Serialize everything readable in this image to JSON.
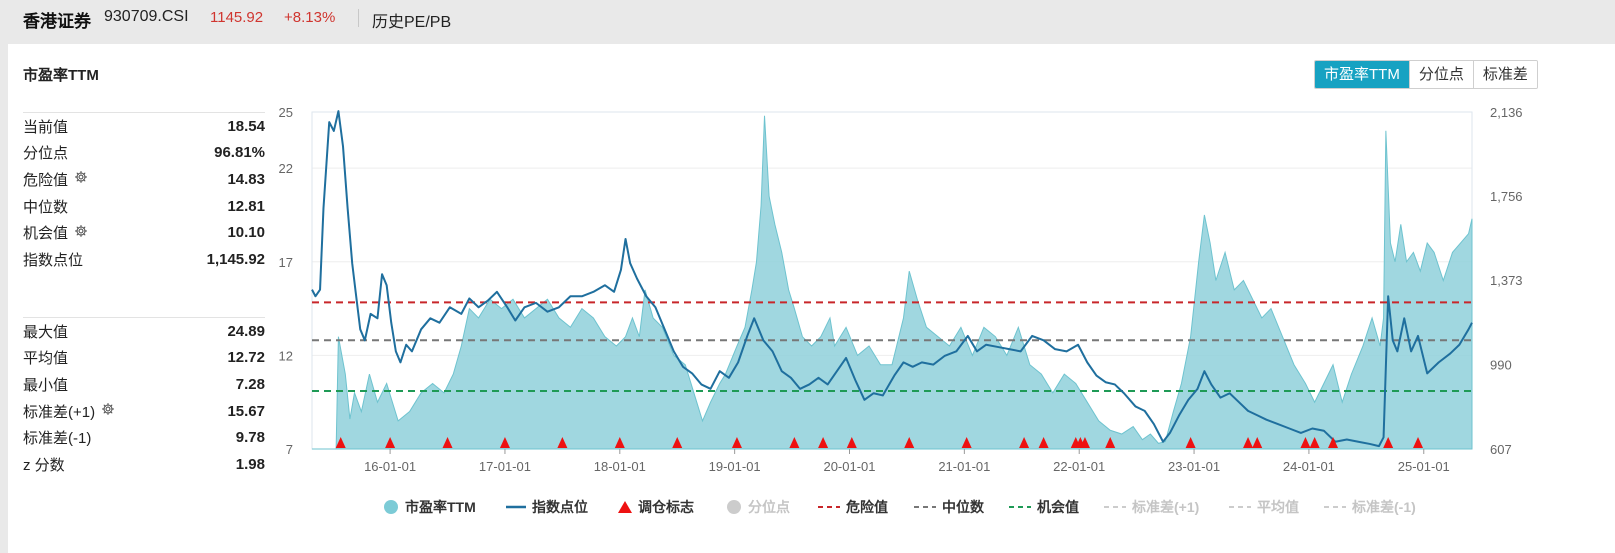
{
  "header": {
    "name": "香港证券",
    "code": "930709.CSI",
    "price": "1145.92",
    "change": "+8.13%",
    "subtitle": "历史PE/PB"
  },
  "card": {
    "title": "市盈率TTM",
    "tabs": [
      {
        "label": "市盈率TTM",
        "active": true
      },
      {
        "label": "分位点",
        "active": false
      },
      {
        "label": "标准差",
        "active": false
      }
    ]
  },
  "stats_top": [
    {
      "label": "当前值",
      "value": "18.54",
      "gear": false
    },
    {
      "label": "分位点",
      "value": "96.81%",
      "gear": false
    },
    {
      "label": "危险值",
      "value": "14.83",
      "gear": true
    },
    {
      "label": "中位数",
      "value": "12.81",
      "gear": false
    },
    {
      "label": "机会值",
      "value": "10.10",
      "gear": true
    },
    {
      "label": "指数点位",
      "value": "1,145.92",
      "gear": false
    }
  ],
  "stats_bottom": [
    {
      "label": "最大值",
      "value": "24.89",
      "gear": false
    },
    {
      "label": "平均值",
      "value": "12.72",
      "gear": false
    },
    {
      "label": "最小值",
      "value": "7.28",
      "gear": false
    },
    {
      "label": "标准差(+1)",
      "value": "15.67",
      "gear": true
    },
    {
      "label": "标准差(-1)",
      "value": "9.78",
      "gear": false
    },
    {
      "label": "z 分数",
      "value": "1.98",
      "gear": false
    }
  ],
  "legend": [
    {
      "label": "市盈率TTM",
      "icon": "circle",
      "color": "#7ccbd6",
      "dim": false
    },
    {
      "label": "指数点位",
      "icon": "line",
      "color": "#1f6f9e",
      "dim": false
    },
    {
      "label": "调仓标志",
      "icon": "triangle",
      "color": "#ee1111",
      "dim": false
    },
    {
      "label": "分位点",
      "icon": "circle",
      "color": "#cccccc",
      "dim": true
    },
    {
      "label": "危险值",
      "icon": "dash",
      "color": "#c8262a",
      "dim": false
    },
    {
      "label": "中位数",
      "icon": "dash",
      "color": "#777777",
      "dim": false
    },
    {
      "label": "机会值",
      "icon": "dash",
      "color": "#1f9a56",
      "dim": false
    },
    {
      "label": "标准差(+1)",
      "icon": "dash",
      "color": "#cccccc",
      "dim": true
    },
    {
      "label": "平均值",
      "icon": "dash",
      "color": "#cccccc",
      "dim": true
    },
    {
      "label": "标准差(-1)",
      "icon": "dash",
      "color": "#cccccc",
      "dim": true
    }
  ],
  "chart_data": {
    "type": "area",
    "x_labels": [
      "16-01-01",
      "17-01-01",
      "18-01-01",
      "19-01-01",
      "20-01-01",
      "21-01-01",
      "22-01-01",
      "23-01-01",
      "24-01-01",
      "25-01-01"
    ],
    "left_axis": {
      "ticks": [
        "25",
        "22",
        "17",
        "12",
        "7"
      ],
      "range": [
        7,
        25
      ]
    },
    "right_axis": {
      "ticks": [
        "2,136",
        "1,756",
        "1,373",
        "990",
        "607"
      ],
      "range": [
        607,
        2136
      ]
    },
    "reference_lines": {
      "danger": 14.83,
      "median": 12.81,
      "opportunity": 10.1
    },
    "x_range": [
      2015.35,
      2025.45
    ],
    "pe_series": [
      [
        2015.35,
        7.0
      ],
      [
        2015.56,
        7.0
      ],
      [
        2015.58,
        13.0
      ],
      [
        2015.64,
        11.0
      ],
      [
        2015.68,
        8.6
      ],
      [
        2015.72,
        10.0
      ],
      [
        2015.78,
        9.0
      ],
      [
        2015.85,
        11.0
      ],
      [
        2015.92,
        9.5
      ],
      [
        2016.0,
        10.5
      ],
      [
        2016.1,
        8.5
      ],
      [
        2016.2,
        9.0
      ],
      [
        2016.3,
        10.0
      ],
      [
        2016.4,
        10.5
      ],
      [
        2016.5,
        10.0
      ],
      [
        2016.58,
        11.0
      ],
      [
        2016.65,
        12.5
      ],
      [
        2016.72,
        14.5
      ],
      [
        2016.8,
        14.0
      ],
      [
        2016.9,
        15.0
      ],
      [
        2017.0,
        14.5
      ],
      [
        2017.1,
        15.0
      ],
      [
        2017.2,
        14.0
      ],
      [
        2017.3,
        14.5
      ],
      [
        2017.4,
        15.0
      ],
      [
        2017.5,
        14.0
      ],
      [
        2017.6,
        13.5
      ],
      [
        2017.7,
        14.5
      ],
      [
        2017.8,
        14.0
      ],
      [
        2017.9,
        13.0
      ],
      [
        2018.0,
        12.5
      ],
      [
        2018.08,
        13.0
      ],
      [
        2018.14,
        14.0
      ],
      [
        2018.2,
        13.0
      ],
      [
        2018.25,
        15.5
      ],
      [
        2018.32,
        14.0
      ],
      [
        2018.4,
        13.5
      ],
      [
        2018.5,
        12.0
      ],
      [
        2018.6,
        11.5
      ],
      [
        2018.7,
        9.5
      ],
      [
        2018.75,
        8.5
      ],
      [
        2018.82,
        9.5
      ],
      [
        2018.9,
        10.5
      ],
      [
        2018.95,
        11.0
      ],
      [
        2019.05,
        12.5
      ],
      [
        2019.12,
        13.5
      ],
      [
        2019.18,
        15.5
      ],
      [
        2019.22,
        17.0
      ],
      [
        2019.26,
        20.0
      ],
      [
        2019.29,
        24.8
      ],
      [
        2019.33,
        20.5
      ],
      [
        2019.38,
        19.0
      ],
      [
        2019.44,
        17.5
      ],
      [
        2019.5,
        15.5
      ],
      [
        2019.55,
        14.5
      ],
      [
        2019.62,
        13.0
      ],
      [
        2019.7,
        12.5
      ],
      [
        2019.78,
        13.0
      ],
      [
        2019.86,
        14.0
      ],
      [
        2019.9,
        12.5
      ],
      [
        2020.0,
        13.5
      ],
      [
        2020.1,
        12.0
      ],
      [
        2020.2,
        12.5
      ],
      [
        2020.3,
        11.5
      ],
      [
        2020.4,
        11.5
      ],
      [
        2020.5,
        14.0
      ],
      [
        2020.55,
        16.5
      ],
      [
        2020.62,
        15.0
      ],
      [
        2020.7,
        13.5
      ],
      [
        2020.8,
        13.0
      ],
      [
        2020.9,
        12.5
      ],
      [
        2021.0,
        13.5
      ],
      [
        2021.1,
        12.0
      ],
      [
        2021.2,
        13.5
      ],
      [
        2021.3,
        13.0
      ],
      [
        2021.4,
        12.0
      ],
      [
        2021.5,
        13.5
      ],
      [
        2021.6,
        11.5
      ],
      [
        2021.7,
        11.0
      ],
      [
        2021.8,
        10.0
      ],
      [
        2021.9,
        11.0
      ],
      [
        2022.0,
        10.5
      ],
      [
        2022.1,
        9.5
      ],
      [
        2022.2,
        8.5
      ],
      [
        2022.3,
        8.0
      ],
      [
        2022.4,
        7.8
      ],
      [
        2022.5,
        8.2
      ],
      [
        2022.58,
        7.5
      ],
      [
        2022.65,
        7.8
      ],
      [
        2022.72,
        7.3
      ],
      [
        2022.78,
        7.4
      ],
      [
        2022.85,
        9.0
      ],
      [
        2022.92,
        10.5
      ],
      [
        2023.0,
        13.0
      ],
      [
        2023.07,
        17.0
      ],
      [
        2023.12,
        19.5
      ],
      [
        2023.17,
        18.0
      ],
      [
        2023.22,
        16.0
      ],
      [
        2023.3,
        17.5
      ],
      [
        2023.38,
        15.5
      ],
      [
        2023.46,
        16.0
      ],
      [
        2023.54,
        15.0
      ],
      [
        2023.62,
        14.0
      ],
      [
        2023.7,
        14.5
      ],
      [
        2023.8,
        13.0
      ],
      [
        2023.9,
        11.5
      ],
      [
        2024.0,
        10.5
      ],
      [
        2024.08,
        9.5
      ],
      [
        2024.16,
        10.5
      ],
      [
        2024.24,
        11.5
      ],
      [
        2024.32,
        9.5
      ],
      [
        2024.4,
        11.0
      ],
      [
        2024.5,
        12.5
      ],
      [
        2024.58,
        14.0
      ],
      [
        2024.65,
        12.5
      ],
      [
        2024.68,
        14.0
      ],
      [
        2024.7,
        24.0
      ],
      [
        2024.74,
        18.0
      ],
      [
        2024.78,
        17.0
      ],
      [
        2024.83,
        19.0
      ],
      [
        2024.88,
        17.0
      ],
      [
        2024.94,
        17.5
      ],
      [
        2025.0,
        16.5
      ],
      [
        2025.06,
        18.0
      ],
      [
        2025.12,
        17.5
      ],
      [
        2025.2,
        16.0
      ],
      [
        2025.28,
        17.5
      ],
      [
        2025.35,
        18.0
      ],
      [
        2025.42,
        18.5
      ],
      [
        2025.45,
        19.3
      ],
      [
        2025.45,
        7.0
      ]
    ],
    "index_series": [
      [
        2015.35,
        1330
      ],
      [
        2015.38,
        1300
      ],
      [
        2015.42,
        1330
      ],
      [
        2015.45,
        1700
      ],
      [
        2015.5,
        2090
      ],
      [
        2015.54,
        2050
      ],
      [
        2015.58,
        2140
      ],
      [
        2015.62,
        1980
      ],
      [
        2015.66,
        1700
      ],
      [
        2015.7,
        1450
      ],
      [
        2015.73,
        1320
      ],
      [
        2015.77,
        1150
      ],
      [
        2015.81,
        1100
      ],
      [
        2015.86,
        1220
      ],
      [
        2015.92,
        1200
      ],
      [
        2015.96,
        1400
      ],
      [
        2016.0,
        1350
      ],
      [
        2016.04,
        1180
      ],
      [
        2016.08,
        1050
      ],
      [
        2016.12,
        1000
      ],
      [
        2016.17,
        1080
      ],
      [
        2016.22,
        1050
      ],
      [
        2016.3,
        1150
      ],
      [
        2016.38,
        1200
      ],
      [
        2016.46,
        1180
      ],
      [
        2016.55,
        1250
      ],
      [
        2016.65,
        1220
      ],
      [
        2016.72,
        1290
      ],
      [
        2016.8,
        1250
      ],
      [
        2016.88,
        1280
      ],
      [
        2016.96,
        1320
      ],
      [
        2017.05,
        1250
      ],
      [
        2017.12,
        1190
      ],
      [
        2017.2,
        1250
      ],
      [
        2017.3,
        1270
      ],
      [
        2017.4,
        1230
      ],
      [
        2017.5,
        1250
      ],
      [
        2017.6,
        1300
      ],
      [
        2017.7,
        1300
      ],
      [
        2017.8,
        1320
      ],
      [
        2017.9,
        1350
      ],
      [
        2017.98,
        1320
      ],
      [
        2018.04,
        1420
      ],
      [
        2018.08,
        1560
      ],
      [
        2018.12,
        1450
      ],
      [
        2018.18,
        1380
      ],
      [
        2018.26,
        1300
      ],
      [
        2018.34,
        1250
      ],
      [
        2018.42,
        1150
      ],
      [
        2018.5,
        1050
      ],
      [
        2018.58,
        980
      ],
      [
        2018.66,
        950
      ],
      [
        2018.74,
        900
      ],
      [
        2018.82,
        880
      ],
      [
        2018.9,
        960
      ],
      [
        2018.98,
        930
      ],
      [
        2019.06,
        1000
      ],
      [
        2019.14,
        1120
      ],
      [
        2019.2,
        1200
      ],
      [
        2019.28,
        1100
      ],
      [
        2019.36,
        1050
      ],
      [
        2019.44,
        960
      ],
      [
        2019.52,
        930
      ],
      [
        2019.6,
        880
      ],
      [
        2019.68,
        900
      ],
      [
        2019.76,
        930
      ],
      [
        2019.84,
        900
      ],
      [
        2019.92,
        960
      ],
      [
        2020.0,
        1020
      ],
      [
        2020.08,
        920
      ],
      [
        2020.16,
        830
      ],
      [
        2020.24,
        860
      ],
      [
        2020.32,
        850
      ],
      [
        2020.42,
        940
      ],
      [
        2020.5,
        1000
      ],
      [
        2020.58,
        980
      ],
      [
        2020.66,
        1000
      ],
      [
        2020.76,
        990
      ],
      [
        2020.86,
        1030
      ],
      [
        2020.96,
        1050
      ],
      [
        2021.06,
        1120
      ],
      [
        2021.14,
        1050
      ],
      [
        2021.22,
        1080
      ],
      [
        2021.32,
        1070
      ],
      [
        2021.42,
        1060
      ],
      [
        2021.52,
        1050
      ],
      [
        2021.62,
        1120
      ],
      [
        2021.72,
        1100
      ],
      [
        2021.82,
        1060
      ],
      [
        2021.92,
        1050
      ],
      [
        2022.02,
        1080
      ],
      [
        2022.1,
        1000
      ],
      [
        2022.18,
        940
      ],
      [
        2022.26,
        910
      ],
      [
        2022.34,
        900
      ],
      [
        2022.42,
        860
      ],
      [
        2022.52,
        800
      ],
      [
        2022.6,
        780
      ],
      [
        2022.68,
        720
      ],
      [
        2022.76,
        640
      ],
      [
        2022.82,
        680
      ],
      [
        2022.9,
        760
      ],
      [
        2022.98,
        830
      ],
      [
        2023.06,
        880
      ],
      [
        2023.12,
        960
      ],
      [
        2023.18,
        900
      ],
      [
        2023.26,
        840
      ],
      [
        2023.34,
        860
      ],
      [
        2023.42,
        820
      ],
      [
        2023.5,
        780
      ],
      [
        2023.58,
        760
      ],
      [
        2023.66,
        740
      ],
      [
        2023.76,
        720
      ],
      [
        2023.86,
        700
      ],
      [
        2023.96,
        680
      ],
      [
        2024.06,
        700
      ],
      [
        2024.16,
        690
      ],
      [
        2024.26,
        640
      ],
      [
        2024.36,
        650
      ],
      [
        2024.46,
        640
      ],
      [
        2024.56,
        630
      ],
      [
        2024.64,
        620
      ],
      [
        2024.68,
        660
      ],
      [
        2024.72,
        1300
      ],
      [
        2024.76,
        1100
      ],
      [
        2024.8,
        1050
      ],
      [
        2024.86,
        1200
      ],
      [
        2024.92,
        1050
      ],
      [
        2024.98,
        1120
      ],
      [
        2025.06,
        950
      ],
      [
        2025.16,
        1000
      ],
      [
        2025.26,
        1040
      ],
      [
        2025.34,
        1080
      ],
      [
        2025.42,
        1150
      ],
      [
        2025.45,
        1180
      ]
    ],
    "rebalance_markers": [
      2015.6,
      2016.03,
      2016.53,
      2017.03,
      2017.53,
      2018.03,
      2018.53,
      2019.05,
      2019.55,
      2019.8,
      2020.05,
      2020.55,
      2021.05,
      2021.55,
      2021.72,
      2022.0,
      2022.04,
      2022.08,
      2022.3,
      2023.0,
      2023.5,
      2023.58,
      2024.0,
      2024.08,
      2024.24,
      2024.72,
      2024.98
    ]
  }
}
